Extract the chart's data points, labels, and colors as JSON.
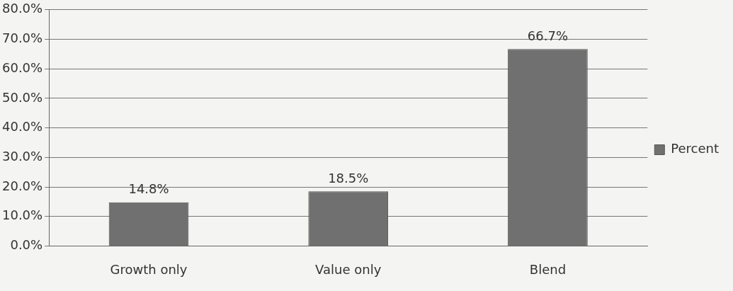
{
  "chart_data": {
    "type": "bar",
    "categories": [
      "Growth only",
      "Value only",
      "Blend"
    ],
    "series": [
      {
        "name": "Percent",
        "color": "#707070",
        "values": [
          14.8,
          18.5,
          66.7
        ],
        "value_labels": [
          "14.8%",
          "18.5%",
          "66.7%"
        ]
      }
    ],
    "ylim": [
      0,
      80
    ],
    "yticks": [
      {
        "value": 0,
        "label": "0.0%"
      },
      {
        "value": 10,
        "label": "10.0%"
      },
      {
        "value": 20,
        "label": "20.0%"
      },
      {
        "value": 30,
        "label": "30.0%"
      },
      {
        "value": 40,
        "label": "40.0%"
      },
      {
        "value": 50,
        "label": "50.0%"
      },
      {
        "value": 60,
        "label": "60.0%"
      },
      {
        "value": 70,
        "label": "70.0%"
      },
      {
        "value": 80,
        "label": "80.0%"
      }
    ],
    "grid": "y",
    "legend": "right"
  }
}
